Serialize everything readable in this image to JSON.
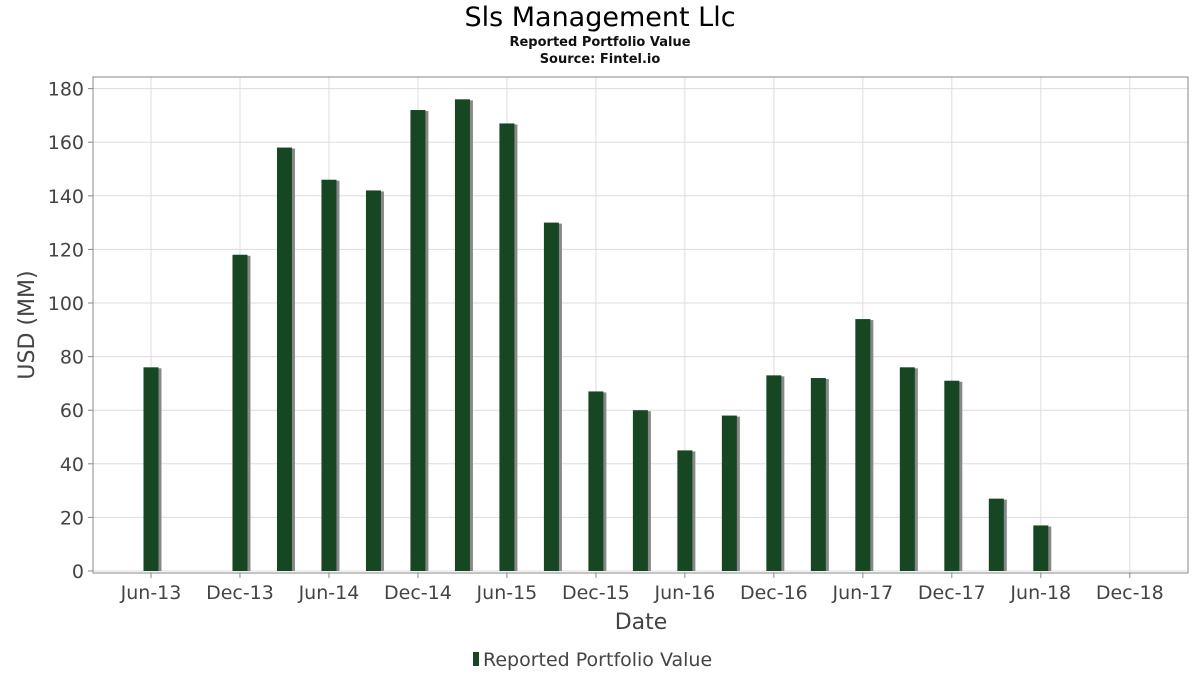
{
  "header": {
    "title": "Sls Management Llc",
    "subtitle": "Reported Portfolio Value",
    "source": "Source: Fintel.io"
  },
  "colors": {
    "bar": "#174623",
    "bar_shadow": "#888888",
    "grid": "#dddddd",
    "axis": "#888888",
    "text": "#444444"
  },
  "chart_data": {
    "type": "bar",
    "title": "Sls Management Llc",
    "xlabel": "Date",
    "ylabel": "USD (MM)",
    "ylim": [
      0,
      185
    ],
    "yticks": [
      0,
      20,
      40,
      60,
      80,
      100,
      120,
      140,
      160,
      180
    ],
    "x_tick_labels": [
      "Jun-13",
      "Dec-13",
      "Jun-14",
      "Dec-14",
      "Jun-15",
      "Dec-15",
      "Jun-16",
      "Dec-16",
      "Jun-17",
      "Dec-17",
      "Jun-18",
      "Dec-18"
    ],
    "x_range": [
      "2013-04",
      "2019-02"
    ],
    "grid": true,
    "legend_position": "bottom",
    "series": [
      {
        "name": "Reported Portfolio Value",
        "points": [
          {
            "date": "2013-06",
            "value": 76
          },
          {
            "date": "2013-12",
            "value": 118
          },
          {
            "date": "2014-03",
            "value": 158
          },
          {
            "date": "2014-06",
            "value": 146
          },
          {
            "date": "2014-09",
            "value": 142
          },
          {
            "date": "2014-12",
            "value": 172
          },
          {
            "date": "2015-03",
            "value": 176
          },
          {
            "date": "2015-06",
            "value": 167
          },
          {
            "date": "2015-09",
            "value": 130
          },
          {
            "date": "2015-12",
            "value": 67
          },
          {
            "date": "2016-03",
            "value": 60
          },
          {
            "date": "2016-06",
            "value": 45
          },
          {
            "date": "2016-09",
            "value": 58
          },
          {
            "date": "2016-12",
            "value": 73
          },
          {
            "date": "2017-03",
            "value": 72
          },
          {
            "date": "2017-06",
            "value": 94
          },
          {
            "date": "2017-09",
            "value": 76
          },
          {
            "date": "2017-12",
            "value": 71
          },
          {
            "date": "2018-03",
            "value": 27
          },
          {
            "date": "2018-06",
            "value": 17
          }
        ]
      }
    ]
  }
}
